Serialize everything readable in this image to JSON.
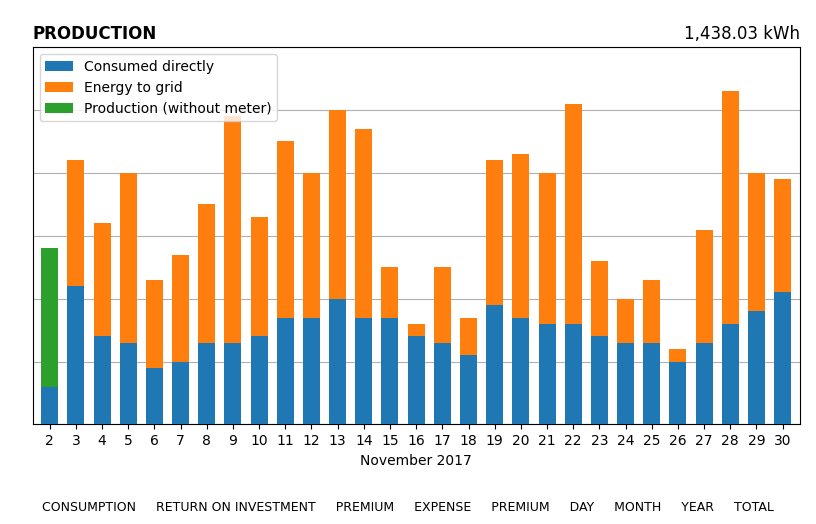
{
  "chart_data": {
    "type": "bar",
    "stacked": true,
    "title": "PRODUCTION",
    "subtitle": "1,438.03 kWh",
    "x_label": "November 2017",
    "annotations": [
      "CONSUMPTION",
      "RETURN ON INVESTMENT",
      "PREMIUM",
      "EXPENSE",
      "PREMIUM",
      "DAY",
      "MONTH",
      "YEAR",
      "TOTAL"
    ],
    "categories": [
      "2",
      "3",
      "4",
      "5",
      "6",
      "7",
      "8",
      "9",
      "10",
      "11",
      "12",
      "13",
      "14",
      "15",
      "16",
      "17",
      "18",
      "19",
      "20",
      "21",
      "22",
      "23",
      "24",
      "25",
      "26",
      "27",
      "28",
      "29",
      "30"
    ],
    "series": [
      {
        "name": "Consumed directly",
        "values": [
          6,
          22,
          14,
          13,
          9,
          10,
          13,
          13,
          14,
          17,
          17,
          20,
          17,
          17,
          14,
          13,
          11,
          19,
          17,
          16,
          16,
          14,
          13,
          13,
          10,
          13,
          16,
          18,
          21
        ]
      },
      {
        "name": "Energy to grid",
        "values": [
          0,
          20,
          18,
          27,
          14,
          17,
          22,
          36,
          19,
          28,
          23,
          30,
          30,
          8,
          2,
          12,
          6,
          23,
          26,
          24,
          35,
          12,
          7,
          10,
          2,
          18,
          37,
          22,
          18
        ]
      },
      {
        "name": "Production (without meter)",
        "values": [
          22,
          0,
          0,
          0,
          0,
          0,
          0,
          0,
          0,
          0,
          0,
          0,
          0,
          0,
          0,
          0,
          0,
          0,
          0,
          0,
          0,
          0,
          0,
          0,
          0,
          0,
          0,
          0,
          0
        ]
      }
    ],
    "ylim": [
      0,
      60
    ],
    "yticks": [
      0,
      10,
      20,
      30,
      40,
      50,
      60
    ],
    "tick_labels": "x",
    "grid": true,
    "legend": "upper left"
  }
}
